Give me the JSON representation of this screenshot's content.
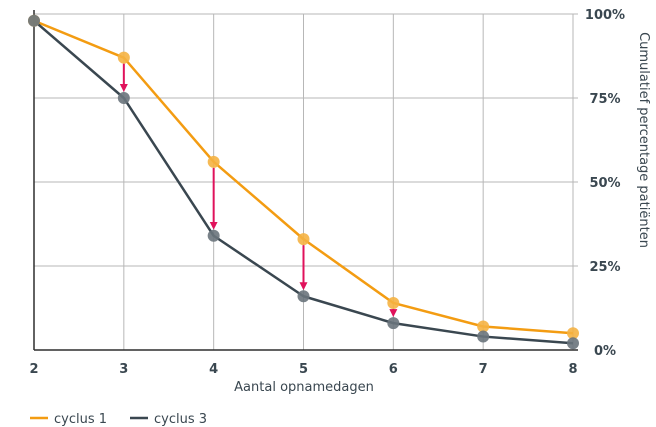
{
  "chart_data": {
    "type": "line",
    "x": [
      2,
      3,
      4,
      5,
      6,
      7,
      8
    ],
    "xlabel": "Aantal opnamedagen",
    "ylabel": "Cumulatief percentage patiënten",
    "ylim": [
      0,
      100
    ],
    "y_ticks": [
      "0%",
      "25%",
      "50%",
      "75%",
      "100%"
    ],
    "y_tick_values": [
      0,
      25,
      50,
      75,
      100
    ],
    "grid": true,
    "legend_position": "bottom-left",
    "series": [
      {
        "name": "cyclus 1",
        "color": "#f39c12",
        "values": [
          98,
          87,
          56,
          33,
          14,
          7,
          5
        ]
      },
      {
        "name": "cyclus 3",
        "color": "#3a4750",
        "values": [
          98,
          75,
          34,
          16,
          8,
          4,
          2
        ]
      }
    ],
    "annotations": {
      "type": "arrows",
      "color": "#e0125b",
      "from_series": "cyclus 1",
      "to_series": "cyclus 3",
      "x": [
        3,
        4,
        5,
        6
      ]
    }
  }
}
